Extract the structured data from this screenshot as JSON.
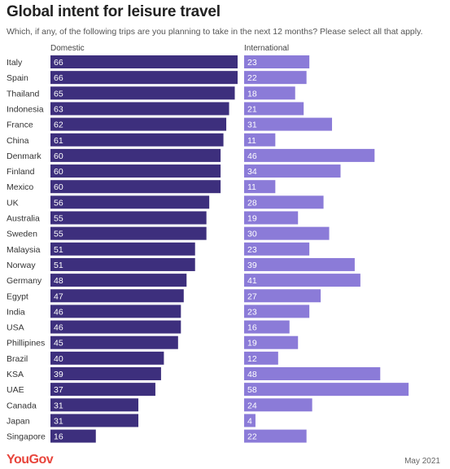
{
  "chart_data": {
    "type": "bar",
    "title": "Global intent for leisure travel",
    "subtitle": "Which, if any, of the following trips are you planning to take in the next 12 months? Please select all that apply.",
    "categories": [
      "Italy",
      "Spain",
      "Thailand",
      "Indonesia",
      "France",
      "China",
      "Denmark",
      "Finland",
      "Mexico",
      "UK",
      "Australia",
      "Sweden",
      "Malaysia",
      "Norway",
      "Germany",
      "Egypt",
      "India",
      "USA",
      "Phillipines",
      "Brazil",
      "KSA",
      "UAE",
      "Canada",
      "Japan",
      "Singapore"
    ],
    "series": [
      {
        "name": "Domestic",
        "color": "#3d2f7d",
        "values": [
          66,
          66,
          65,
          63,
          62,
          61,
          60,
          60,
          60,
          56,
          55,
          55,
          51,
          51,
          48,
          47,
          46,
          46,
          45,
          40,
          39,
          37,
          31,
          31,
          16
        ]
      },
      {
        "name": "International",
        "color": "#8b7bd8",
        "values": [
          23,
          22,
          18,
          21,
          31,
          11,
          46,
          34,
          11,
          28,
          19,
          30,
          23,
          39,
          41,
          27,
          23,
          16,
          19,
          12,
          48,
          58,
          24,
          4,
          22
        ]
      }
    ],
    "xlim": [
      0,
      100
    ]
  },
  "footer": {
    "brand": "YouGov",
    "date": "May 2021"
  }
}
